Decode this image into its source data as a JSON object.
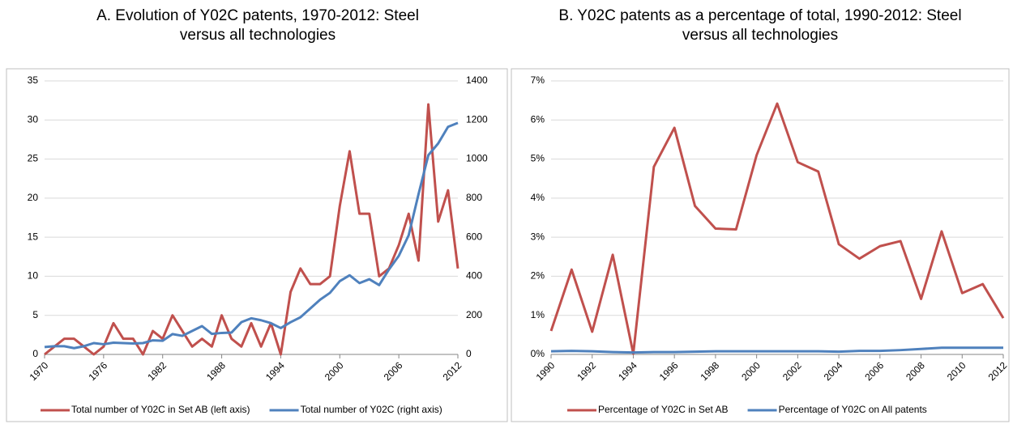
{
  "chart_data": [
    {
      "type": "line",
      "title": "A. Evolution of Y02C patents, 1970-2012: Steel versus all technologies",
      "x": [
        1970,
        1971,
        1972,
        1973,
        1974,
        1975,
        1976,
        1977,
        1978,
        1979,
        1980,
        1981,
        1982,
        1983,
        1984,
        1985,
        1986,
        1987,
        1988,
        1989,
        1990,
        1991,
        1992,
        1993,
        1994,
        1995,
        1996,
        1997,
        1998,
        1999,
        2000,
        2001,
        2002,
        2003,
        2004,
        2005,
        2006,
        2007,
        2008,
        2009,
        2010,
        2011,
        2012
      ],
      "xlim": [
        1970,
        2012
      ],
      "xticks": [
        1970,
        1976,
        1982,
        1988,
        1994,
        2000,
        2006,
        2012
      ],
      "ylim": [
        0,
        35
      ],
      "yticks": [
        0,
        5,
        10,
        15,
        20,
        25,
        30,
        35
      ],
      "y2lim": [
        0,
        1400
      ],
      "y2ticks": [
        0,
        200,
        400,
        600,
        800,
        1000,
        1200,
        1400
      ],
      "grid": true,
      "series": [
        {
          "name": "Total number of Y02C in Set AB (left axis)",
          "color": "#c0504d",
          "values": [
            0,
            1,
            2,
            2,
            1,
            0,
            1,
            4,
            2,
            2,
            0,
            3,
            2,
            5,
            3,
            1,
            2,
            1,
            5,
            2,
            1,
            4,
            1,
            4,
            0,
            8,
            11,
            9,
            9,
            10,
            19,
            26,
            18,
            18,
            10,
            11,
            14,
            18,
            12,
            32,
            17,
            21,
            11
          ]
        },
        {
          "name": "Total number of Y02C (right axis)",
          "color": "#4f81bd",
          "axis": "y2",
          "values": [
            38,
            42,
            42,
            32,
            42,
            58,
            52,
            60,
            58,
            56,
            58,
            72,
            70,
            104,
            95,
            120,
            145,
            105,
            110,
            112,
            165,
            185,
            175,
            160,
            135,
            165,
            190,
            235,
            280,
            315,
            375,
            405,
            365,
            385,
            355,
            435,
            505,
            610,
            820,
            1020,
            1080,
            1165,
            1185
          ]
        }
      ]
    },
    {
      "type": "line",
      "title": "B. Y02C patents as a percentage of total, 1990-2012: Steel versus all technologies",
      "x": [
        1990,
        1991,
        1992,
        1993,
        1994,
        1995,
        1996,
        1997,
        1998,
        1999,
        2000,
        2001,
        2002,
        2003,
        2004,
        2005,
        2006,
        2007,
        2008,
        2009,
        2010,
        2011,
        2012
      ],
      "xlim": [
        1990,
        2012
      ],
      "xticks": [
        1990,
        1992,
        1994,
        1996,
        1998,
        2000,
        2002,
        2004,
        2006,
        2008,
        2010,
        2012
      ],
      "ylim": [
        0,
        7
      ],
      "yticks": [
        {
          "value": 0,
          "label": "0%"
        },
        {
          "value": 1,
          "label": "1%"
        },
        {
          "value": 2,
          "label": "2%"
        },
        {
          "value": 3,
          "label": "3%"
        },
        {
          "value": 4,
          "label": "4%"
        },
        {
          "value": 5,
          "label": "5%"
        },
        {
          "value": 6,
          "label": "6%"
        },
        {
          "value": 7,
          "label": "7%"
        }
      ],
      "grid": true,
      "series": [
        {
          "name": "Percentage of Y02C in Set AB",
          "color": "#c0504d",
          "values": [
            0.6,
            2.17,
            0.58,
            2.55,
            0.02,
            4.8,
            5.8,
            3.8,
            3.22,
            3.2,
            5.1,
            6.42,
            4.92,
            4.68,
            2.82,
            2.45,
            2.77,
            2.9,
            1.42,
            3.15,
            1.57,
            1.8,
            0.93
          ]
        },
        {
          "name": "Percentage of Y02C on All patents",
          "color": "#4f81bd",
          "values": [
            0.08,
            0.09,
            0.08,
            0.06,
            0.05,
            0.06,
            0.06,
            0.07,
            0.08,
            0.08,
            0.08,
            0.08,
            0.08,
            0.08,
            0.07,
            0.09,
            0.09,
            0.11,
            0.14,
            0.17,
            0.17,
            0.17,
            0.17
          ]
        }
      ]
    }
  ]
}
